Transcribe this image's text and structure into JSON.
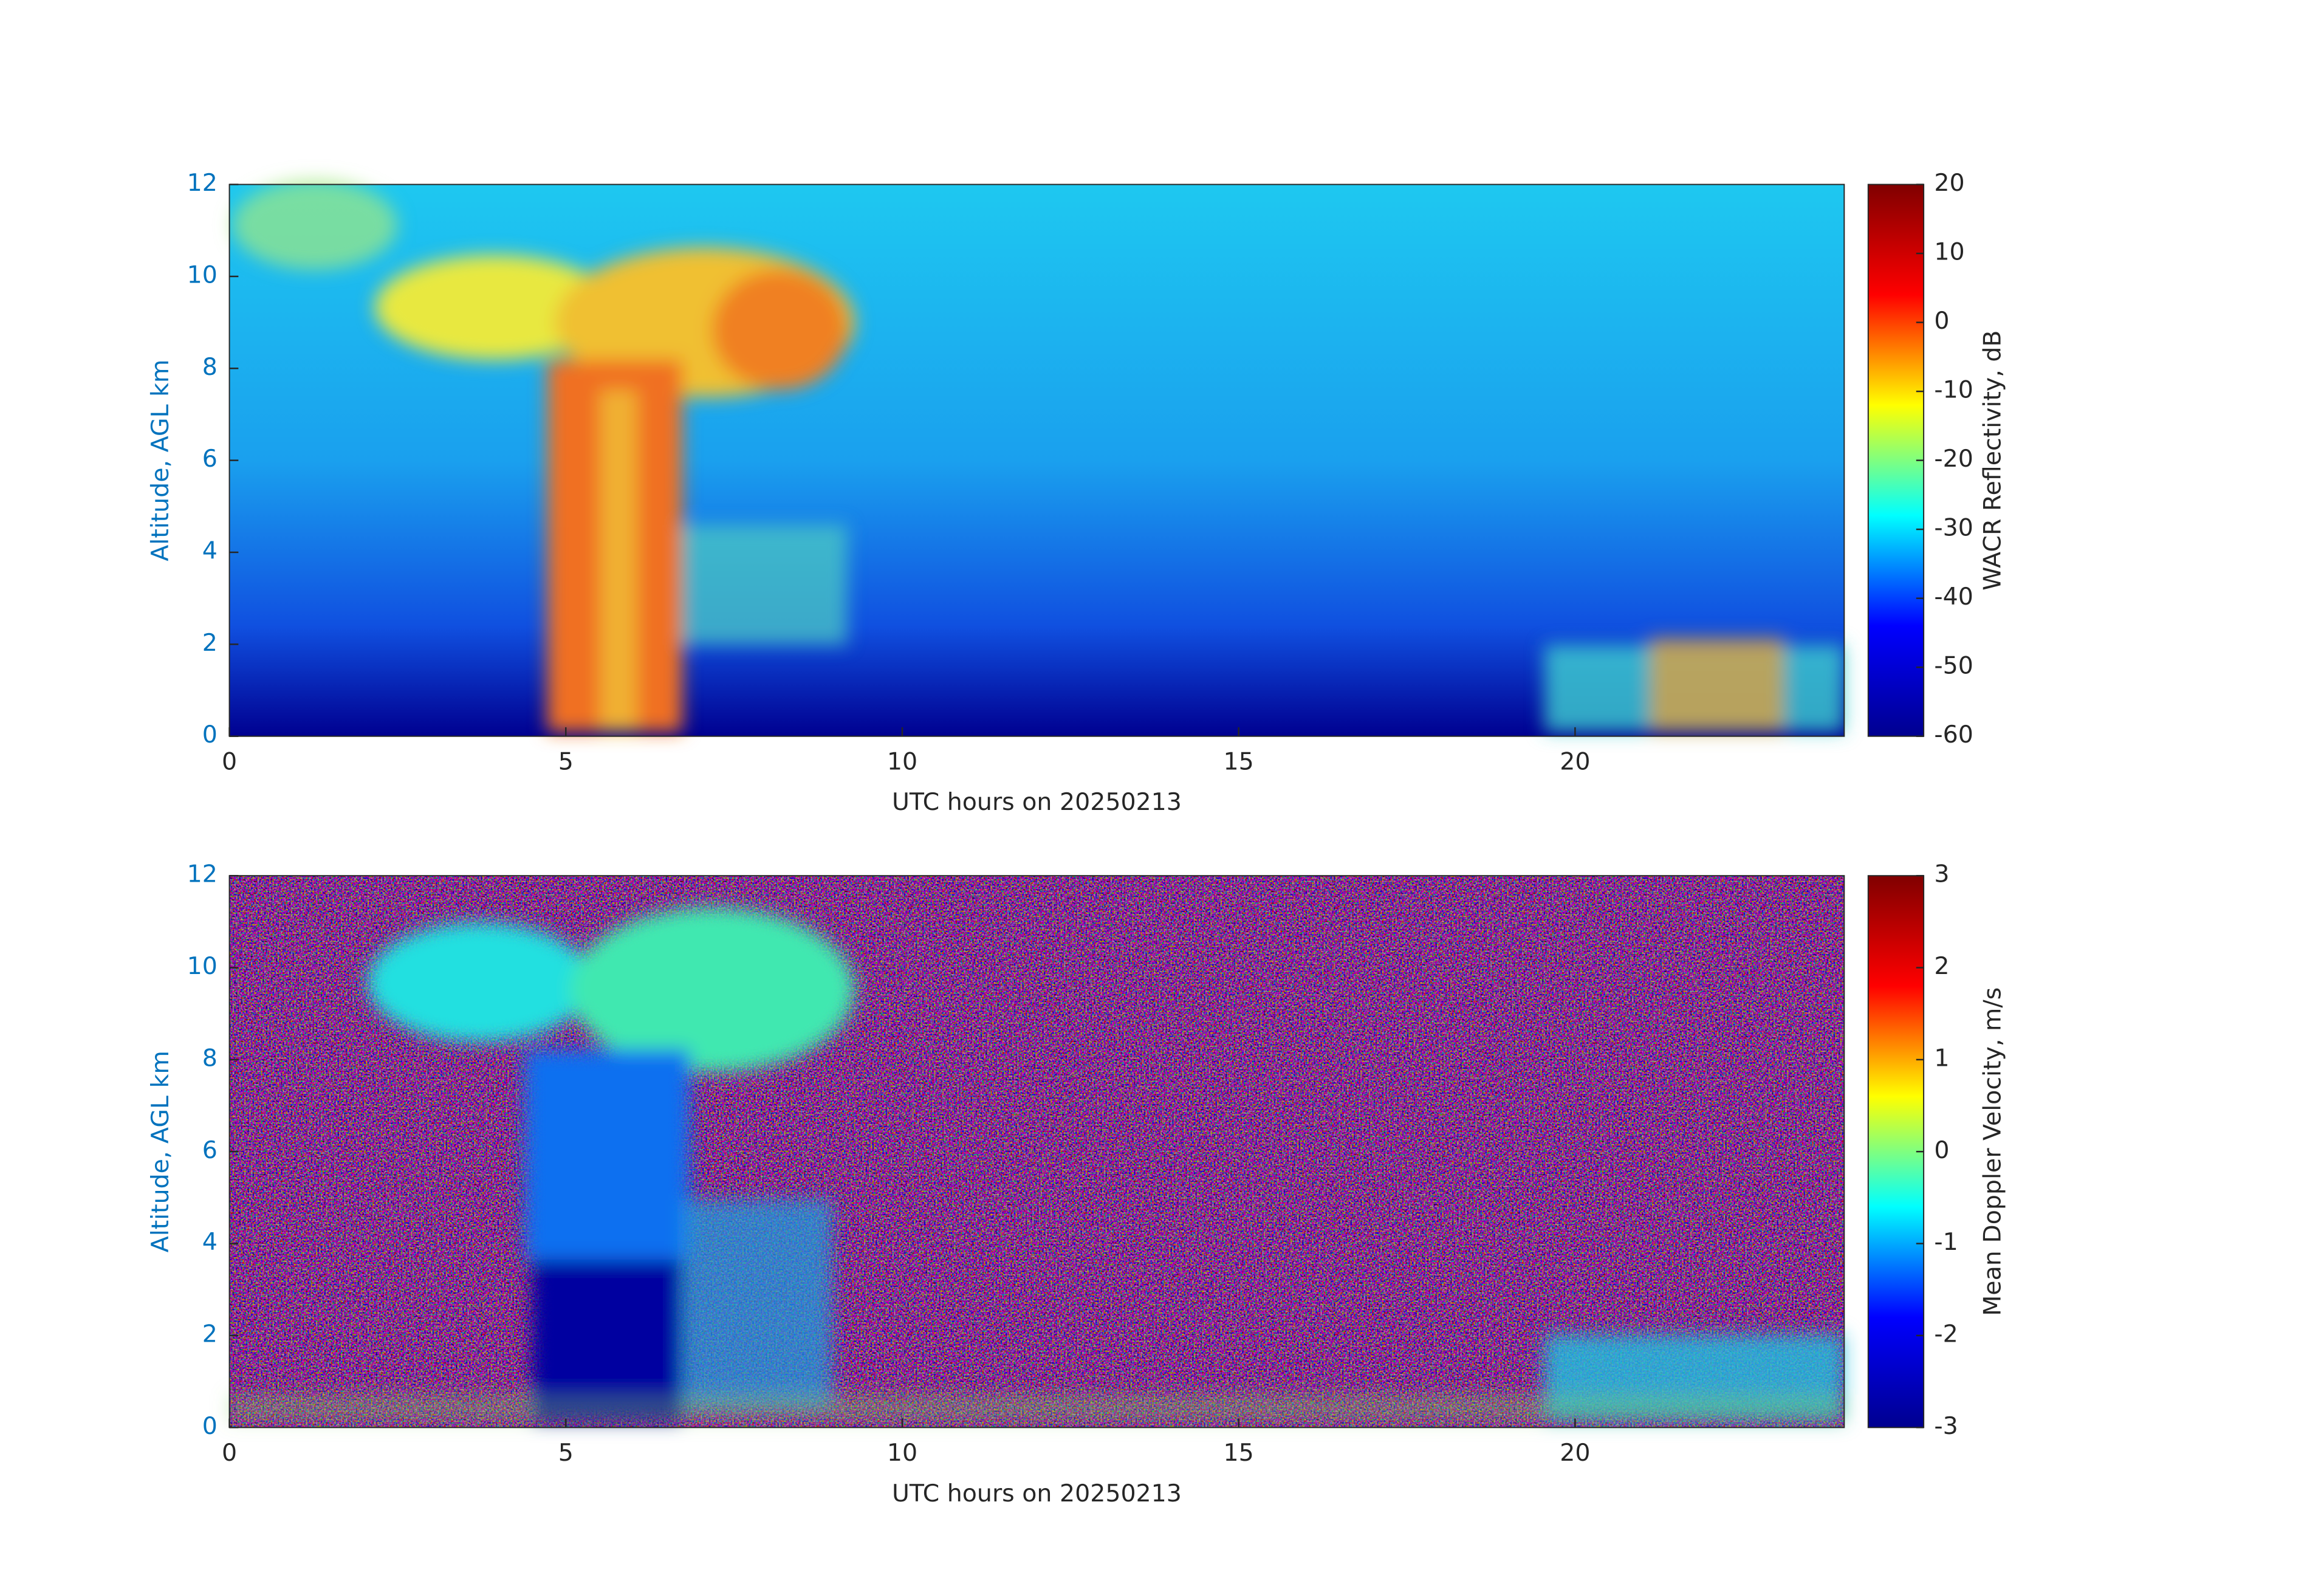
{
  "chart_data": [
    {
      "type": "heatmap",
      "xlabel": "UTC hours on 20250213",
      "ylabel": "Altitude, AGL km",
      "xlim": [
        0,
        24
      ],
      "xticks": [
        0,
        5,
        10,
        15,
        20
      ],
      "ylim": [
        0,
        12
      ],
      "yticks": [
        0,
        2,
        4,
        6,
        8,
        10,
        12
      ],
      "colorbar": {
        "label": "WACR Reflectivity, dB",
        "lim": [
          -60,
          20
        ],
        "ticks": [
          -60,
          -50,
          -40,
          -30,
          -20,
          -10,
          0,
          10,
          20
        ],
        "colormap": "jet"
      }
    },
    {
      "type": "heatmap",
      "xlabel": "UTC hours on 20250213",
      "ylabel": "Altitude, AGL km",
      "xlim": [
        0,
        24
      ],
      "xticks": [
        0,
        5,
        10,
        15,
        20
      ],
      "ylim": [
        0,
        12
      ],
      "yticks": [
        0,
        2,
        4,
        6,
        8,
        10,
        12
      ],
      "colorbar": {
        "label": "Mean Doppler Velocity, m/s",
        "lim": [
          -3,
          3
        ],
        "ticks": [
          -3,
          -2,
          -1,
          0,
          1,
          2,
          3
        ],
        "colormap": "jet"
      }
    }
  ]
}
